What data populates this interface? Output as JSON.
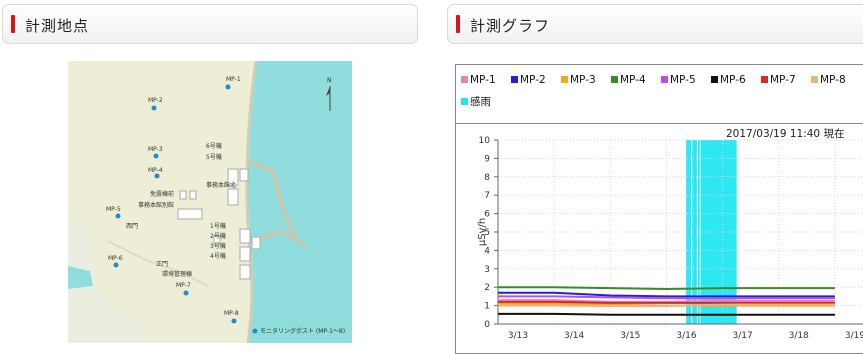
{
  "panels": {
    "left_title": "計測地点",
    "right_title": "計測グラフ"
  },
  "map": {
    "points": [
      "MP-1",
      "MP-2",
      "MP-3",
      "MP-4",
      "MP-5",
      "MP-6",
      "MP-7",
      "MP-8"
    ],
    "buildings": [
      "6号機",
      "5号機",
      "事務本館北",
      "免震棟前",
      "事務本館別館",
      "1号機",
      "2号機",
      "3号機",
      "4号機"
    ],
    "gates": [
      "西門",
      "正門"
    ],
    "other": "環境管理棟",
    "legend": "モニタリングポスト (MP-1〜8)",
    "north": "N",
    "colors": {
      "sea": "#8fdedd",
      "land": "#eeeed6",
      "point": "#1c8fd0"
    }
  },
  "timestamp": "2017/03/19 11:40 現在",
  "chart_data": {
    "type": "line",
    "ylabel": "μSv/h",
    "ylim": [
      0,
      10
    ],
    "yticks": [
      "0",
      "1",
      "2",
      "3",
      "4",
      "5",
      "6",
      "7",
      "8",
      "9",
      "10"
    ],
    "x": [
      "3/13",
      "3/14",
      "3/15",
      "3/16",
      "3/17",
      "3/18",
      "3/19"
    ],
    "series": [
      {
        "name": "MP-1",
        "color": "#ef7fb3",
        "values": [
          1.3,
          1.3,
          1.2,
          1.2,
          1.25,
          1.25,
          1.25
        ]
      },
      {
        "name": "MP-2",
        "color": "#1f22d6",
        "values": [
          1.7,
          1.7,
          1.55,
          1.5,
          1.5,
          1.5,
          1.5
        ]
      },
      {
        "name": "MP-3",
        "color": "#f5a623",
        "values": [
          1.1,
          1.1,
          1.05,
          1.0,
          1.0,
          1.0,
          1.0
        ]
      },
      {
        "name": "MP-4",
        "color": "#3a8a2a",
        "values": [
          2.0,
          2.0,
          1.95,
          1.9,
          1.95,
          1.95,
          1.95
        ]
      },
      {
        "name": "MP-5",
        "color": "#c04ce8",
        "values": [
          1.5,
          1.5,
          1.45,
          1.4,
          1.4,
          1.4,
          1.4
        ]
      },
      {
        "name": "MP-6",
        "color": "#111111",
        "values": [
          0.55,
          0.55,
          0.5,
          0.5,
          0.5,
          0.5,
          0.5
        ]
      },
      {
        "name": "MP-7",
        "color": "#d62828",
        "values": [
          1.2,
          1.2,
          1.15,
          1.15,
          1.15,
          1.15,
          1.15
        ]
      },
      {
        "name": "MP-8",
        "color": "#e8b67a",
        "values": [
          1.0,
          1.0,
          0.98,
          0.98,
          1.05,
          1.05,
          1.05
        ]
      }
    ],
    "rain": {
      "name": "感雨",
      "color": "#22e6f2",
      "intervals": [
        [
          3.85,
          4.75
        ],
        [
          7.6,
          7.63
        ]
      ]
    }
  }
}
